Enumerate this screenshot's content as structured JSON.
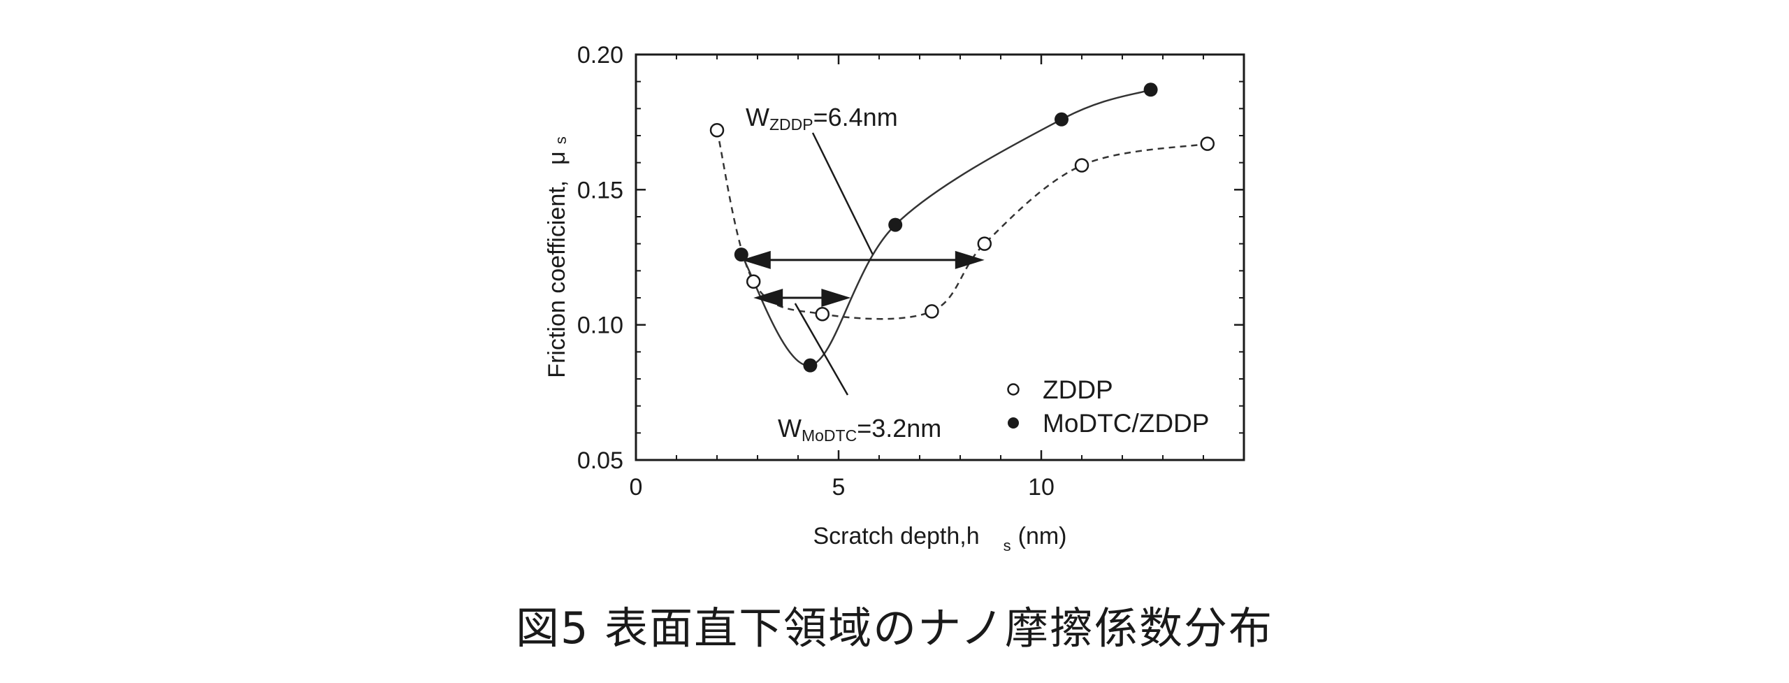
{
  "caption": "図5 表面直下領域のナノ摩擦係数分布",
  "chart_data": {
    "type": "scatter",
    "xlabel": "Scratch depth,h",
    "xlabel_sub": "s",
    "xlabel_unit": "(nm)",
    "ylabel": "Friction coefficient,",
    "ylabel_symbol": "μ",
    "ylabel_sub": "s",
    "xlim": [
      0,
      15
    ],
    "ylim": [
      0.05,
      0.2
    ],
    "x_ticks": [
      0,
      5,
      10
    ],
    "x_tick_labels": [
      "0",
      "5",
      "10"
    ],
    "y_ticks": [
      0.05,
      0.1,
      0.15,
      0.2
    ],
    "y_tick_labels": [
      "0.05",
      "0.10",
      "0.15",
      "0.20"
    ],
    "legend_position": "bottom-right",
    "series": [
      {
        "name": "ZDDP",
        "marker": "open-circle",
        "line": "dashed",
        "x": [
          2.0,
          2.9,
          4.6,
          7.3,
          8.6,
          11.0,
          14.1
        ],
        "y": [
          0.172,
          0.116,
          0.104,
          0.105,
          0.13,
          0.159,
          0.167
        ]
      },
      {
        "name": "MoDTC/ZDDP",
        "marker": "filled-circle",
        "line": "solid",
        "x": [
          2.6,
          4.3,
          6.4,
          10.5,
          12.7
        ],
        "y": [
          0.126,
          0.085,
          0.137,
          0.176,
          0.187
        ]
      }
    ],
    "annotations": [
      {
        "main": "W",
        "sub": "ZDDP",
        "rest": "=6.4nm",
        "x_from": 2.6,
        "x_to": 8.6,
        "y": 0.124
      },
      {
        "main": "W",
        "sub": "MoDTC",
        "rest": "=3.2nm",
        "x_from": 2.9,
        "x_to": 5.3,
        "y": 0.11
      }
    ]
  }
}
